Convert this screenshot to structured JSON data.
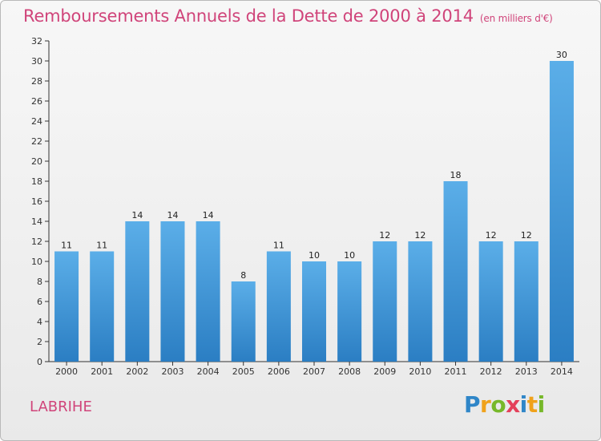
{
  "chart_data": {
    "type": "bar",
    "title": "Remboursements Annuels de la Dette de 2000 à 2014",
    "subtitle": "(en milliers d'€)",
    "xlabel": "",
    "ylabel": "",
    "categories": [
      "2000",
      "2001",
      "2002",
      "2003",
      "2004",
      "2005",
      "2006",
      "2007",
      "2008",
      "2009",
      "2010",
      "2011",
      "2012",
      "2013",
      "2014"
    ],
    "values": [
      11,
      11,
      14,
      14,
      14,
      8,
      11,
      10,
      10,
      12,
      12,
      18,
      12,
      12,
      30
    ],
    "data_labels": [
      "11",
      "11",
      "14",
      "14",
      "14",
      "8",
      "11",
      "10",
      "10",
      "12",
      "12",
      "18",
      "12",
      "12",
      "30"
    ],
    "ylim": [
      0,
      32
    ],
    "yticks": [
      0,
      2,
      4,
      6,
      8,
      10,
      12,
      14,
      16,
      18,
      20,
      22,
      24,
      26,
      28,
      30,
      32
    ],
    "ytick_labels": [
      "0",
      "2",
      "4",
      "6",
      "8",
      "10",
      "12",
      "14",
      "16",
      "18",
      "20",
      "22",
      "24",
      "26",
      "28",
      "30",
      "32"
    ],
    "grid": false,
    "bar_color_top": "#5baee8",
    "bar_color_bottom": "#2b7ec3",
    "label_color": "#222222"
  },
  "commune": "LABRIHE",
  "brand": {
    "letters": [
      "P",
      "r",
      "o",
      "x",
      "i",
      "t",
      "i"
    ],
    "colors": [
      "#2f86c8",
      "#f0a21b",
      "#77b82a",
      "#e4405a",
      "#2f86c8",
      "#f0a21b",
      "#77b82a"
    ]
  },
  "colors": {
    "title": "#d0447a",
    "axis": "#333333"
  }
}
